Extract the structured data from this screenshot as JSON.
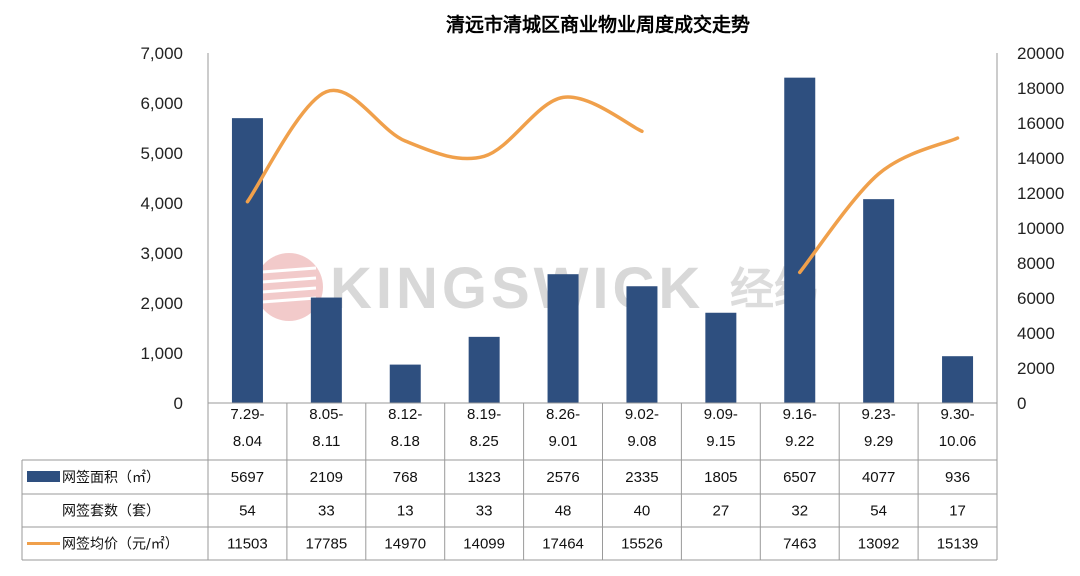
{
  "chart_data": {
    "type": "bar",
    "title": "清远市清城区商业物业周度成交走势",
    "categories": [
      [
        "7.29-",
        "8.04"
      ],
      [
        "8.05-",
        "8.11"
      ],
      [
        "8.12-",
        "8.18"
      ],
      [
        "8.19-",
        "8.25"
      ],
      [
        "8.26-",
        "9.01"
      ],
      [
        "9.02-",
        "9.08"
      ],
      [
        "9.09-",
        "9.15"
      ],
      [
        "9.16-",
        "9.22"
      ],
      [
        "9.23-",
        "9.29"
      ],
      [
        "9.30-",
        "10.06"
      ]
    ],
    "y_left": {
      "ylim": [
        0,
        7000
      ],
      "ticks": [
        "0",
        "1,000",
        "2,000",
        "3,000",
        "4,000",
        "5,000",
        "6,000",
        "7,000"
      ]
    },
    "y_right": {
      "ylim": [
        0,
        20000
      ],
      "ticks": [
        "0",
        "2000",
        "4000",
        "6000",
        "8000",
        "10000",
        "12000",
        "14000",
        "16000",
        "18000",
        "20000"
      ]
    },
    "series": [
      {
        "name": "网签面积（㎡）",
        "type": "bar",
        "axis": "left",
        "color": "#2E4F7F",
        "values": [
          5697,
          2109,
          768,
          1323,
          2576,
          2335,
          1805,
          6507,
          4077,
          936
        ],
        "labels": [
          "5697",
          "2109",
          "768",
          "1323",
          "2576",
          "2335",
          "1805",
          "6507",
          "4077",
          "936"
        ]
      },
      {
        "name": "网签套数（套）",
        "type": "table",
        "values": [
          54,
          33,
          13,
          33,
          48,
          40,
          27,
          32,
          54,
          17
        ],
        "labels": [
          "54",
          "33",
          "13",
          "33",
          "48",
          "40",
          "27",
          "32",
          "54",
          "17"
        ]
      },
      {
        "name": "网签均价（元/㎡）",
        "type": "line",
        "axis": "right",
        "color": "#F0A04B",
        "values": [
          11503,
          17785,
          14970,
          14099,
          17464,
          15526,
          null,
          7463,
          13092,
          15139
        ],
        "labels": [
          "11503",
          "17785",
          "14970",
          "14099",
          "17464",
          "15526",
          "",
          "7463",
          "13092",
          "15139"
        ]
      }
    ],
    "grid": false
  },
  "watermark": {
    "text": "KINGSWICK",
    "cn": "经纬",
    "color": "#E8A0A0"
  }
}
